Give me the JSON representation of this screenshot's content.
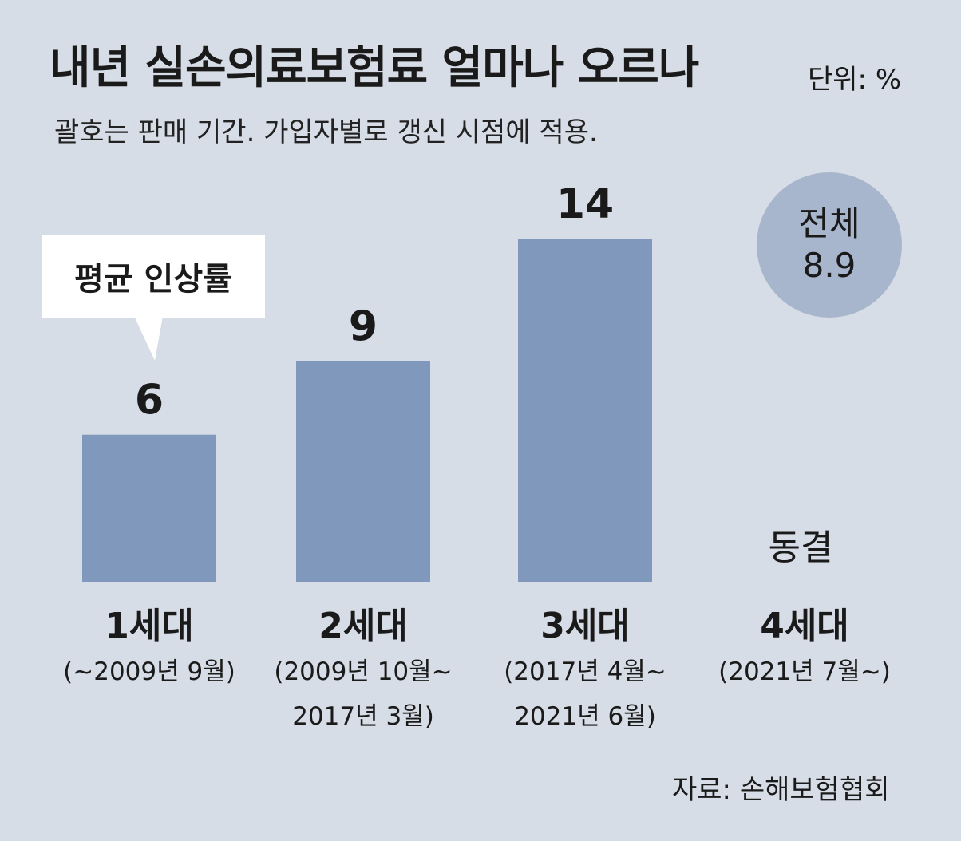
{
  "chart_data": {
    "type": "bar",
    "title": "내년 실손의료보험료 얼마나 오르나",
    "unit_label": "단위: %",
    "subtitle": "괄호는 판매 기간. 가입자별로 갱신 시점에 적용.",
    "callout": "평균 인상률",
    "total": {
      "label": "전체",
      "value": "8.9"
    },
    "categories": [
      "1세대",
      "2세대",
      "3세대",
      "4세대"
    ],
    "periods": [
      [
        "(~2009년 9월)"
      ],
      [
        "(2009년 10월~",
        "2017년 3월)"
      ],
      [
        "(2017년 4월~",
        "2021년 6월)"
      ],
      [
        "(2021년 7월~)"
      ]
    ],
    "values": [
      6,
      9,
      14,
      0
    ],
    "value_labels": [
      "6",
      "9",
      "14",
      "동결"
    ],
    "ylim": [
      0,
      14
    ],
    "source": "자료: 손해보험협회"
  }
}
